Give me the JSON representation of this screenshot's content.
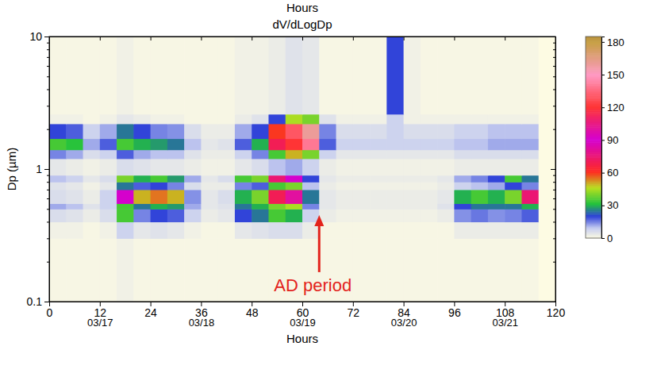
{
  "chart_data": {
    "type": "heatmap",
    "title": "dV/dLogDp",
    "xlabel": "Hours",
    "ylabel": "Dp (µm)",
    "log": "y",
    "x_edges": [
      0,
      4,
      8,
      12,
      16,
      20,
      24,
      28,
      32,
      36,
      40,
      44,
      48,
      52,
      56,
      60,
      64,
      68,
      72,
      76,
      80,
      84,
      88,
      92,
      96,
      100,
      104,
      108,
      112,
      116,
      120
    ],
    "y_edges": [
      0.1,
      0.3,
      0.4,
      0.5,
      0.55,
      0.7,
      0.8,
      0.9,
      1.2,
      1.4,
      1.7,
      2.2,
      2.6,
      10
    ],
    "values": [
      [
        1,
        1,
        1,
        1,
        2,
        1,
        1,
        1,
        1,
        1,
        1,
        1,
        1,
        1,
        1,
        1,
        1,
        1,
        1,
        1,
        1,
        1,
        1,
        1,
        1,
        1,
        1,
        1,
        1,
        0
      ],
      [
        2,
        2,
        1,
        2,
        8,
        4,
        5,
        4,
        2,
        1,
        1,
        4,
        5,
        6,
        6,
        3,
        1,
        1,
        1,
        1,
        1,
        1,
        1,
        1,
        3,
        3,
        3,
        3,
        3,
        0
      ],
      [
        6,
        5,
        3,
        6,
        35,
        15,
        20,
        18,
        8,
        3,
        4,
        20,
        25,
        35,
        30,
        8,
        3,
        2,
        2,
        2,
        2,
        2,
        2,
        3,
        14,
        16,
        14,
        15,
        18,
        0
      ],
      [
        12,
        10,
        5,
        8,
        35,
        25,
        30,
        28,
        12,
        4,
        5,
        25,
        30,
        40,
        45,
        15,
        4,
        3,
        3,
        3,
        3,
        3,
        3,
        5,
        20,
        25,
        25,
        25,
        30,
        0
      ],
      [
        6,
        5,
        3,
        8,
        90,
        50,
        55,
        50,
        14,
        4,
        6,
        30,
        40,
        70,
        100,
        25,
        4,
        3,
        3,
        3,
        3,
        3,
        3,
        4,
        30,
        35,
        30,
        40,
        75,
        0
      ],
      [
        5,
        4,
        2,
        4,
        25,
        18,
        20,
        15,
        6,
        3,
        3,
        15,
        18,
        35,
        40,
        10,
        3,
        2,
        2,
        2,
        2,
        2,
        2,
        3,
        8,
        10,
        12,
        20,
        15,
        0
      ],
      [
        10,
        8,
        4,
        6,
        40,
        30,
        35,
        28,
        12,
        4,
        6,
        35,
        40,
        75,
        90,
        20,
        4,
        3,
        3,
        3,
        3,
        3,
        3,
        4,
        12,
        15,
        20,
        35,
        25,
        0
      ],
      [
        4,
        3,
        2,
        3,
        6,
        5,
        4,
        4,
        3,
        2,
        2,
        4,
        6,
        10,
        12,
        8,
        3,
        2,
        2,
        2,
        2,
        2,
        2,
        2,
        3,
        3,
        3,
        3,
        3,
        0
      ],
      [
        15,
        12,
        6,
        8,
        18,
        12,
        10,
        10,
        5,
        3,
        3,
        8,
        15,
        35,
        50,
        40,
        8,
        4,
        4,
        4,
        4,
        4,
        4,
        4,
        6,
        6,
        6,
        6,
        6,
        0
      ],
      [
        35,
        32,
        12,
        18,
        35,
        30,
        28,
        25,
        10,
        4,
        5,
        18,
        30,
        70,
        120,
        140,
        18,
        8,
        8,
        8,
        8,
        8,
        8,
        8,
        10,
        10,
        12,
        12,
        12,
        0
      ],
      [
        20,
        18,
        8,
        12,
        25,
        20,
        15,
        14,
        6,
        3,
        3,
        12,
        20,
        60,
        130,
        160,
        15,
        6,
        6,
        6,
        8,
        6,
        6,
        6,
        8,
        8,
        10,
        10,
        10,
        0
      ],
      [
        2,
        2,
        1,
        2,
        4,
        3,
        2,
        2,
        1,
        1,
        1,
        3,
        5,
        20,
        45,
        40,
        5,
        2,
        2,
        2,
        8,
        2,
        2,
        2,
        2,
        2,
        2,
        2,
        2,
        0
      ],
      [
        1,
        1,
        1,
        1,
        2,
        1,
        1,
        1,
        1,
        1,
        1,
        2,
        2,
        3,
        5,
        4,
        1,
        1,
        1,
        1,
        20,
        2,
        1,
        1,
        1,
        1,
        1,
        1,
        1,
        0
      ]
    ],
    "xlim": [
      0,
      120
    ],
    "xticks": [
      0,
      12,
      24,
      36,
      48,
      60,
      72,
      84,
      96,
      108,
      120
    ],
    "xticks2": [
      {
        "value": 12,
        "label": "03/17"
      },
      {
        "value": 36,
        "label": "03/18"
      },
      {
        "value": 60,
        "label": "03/19"
      },
      {
        "value": 84,
        "label": "03/20"
      },
      {
        "value": 108,
        "label": "03/21"
      }
    ],
    "ylim": [
      0.1,
      10
    ],
    "yticks": [
      0.1,
      1,
      10
    ],
    "yminorticks": [
      0.2,
      0.3,
      0.4,
      0.5,
      0.6,
      0.7,
      0.8,
      0.9,
      2,
      3,
      4,
      5,
      6,
      7,
      8,
      9
    ],
    "colorbar": {
      "range": [
        0,
        185
      ],
      "ticks": [
        0,
        30,
        60,
        90,
        120,
        150,
        180
      ]
    },
    "annotations": [
      {
        "text": "Hours"
      },
      {
        "text": "AD period",
        "x": 64,
        "y": 0.45
      }
    ]
  }
}
